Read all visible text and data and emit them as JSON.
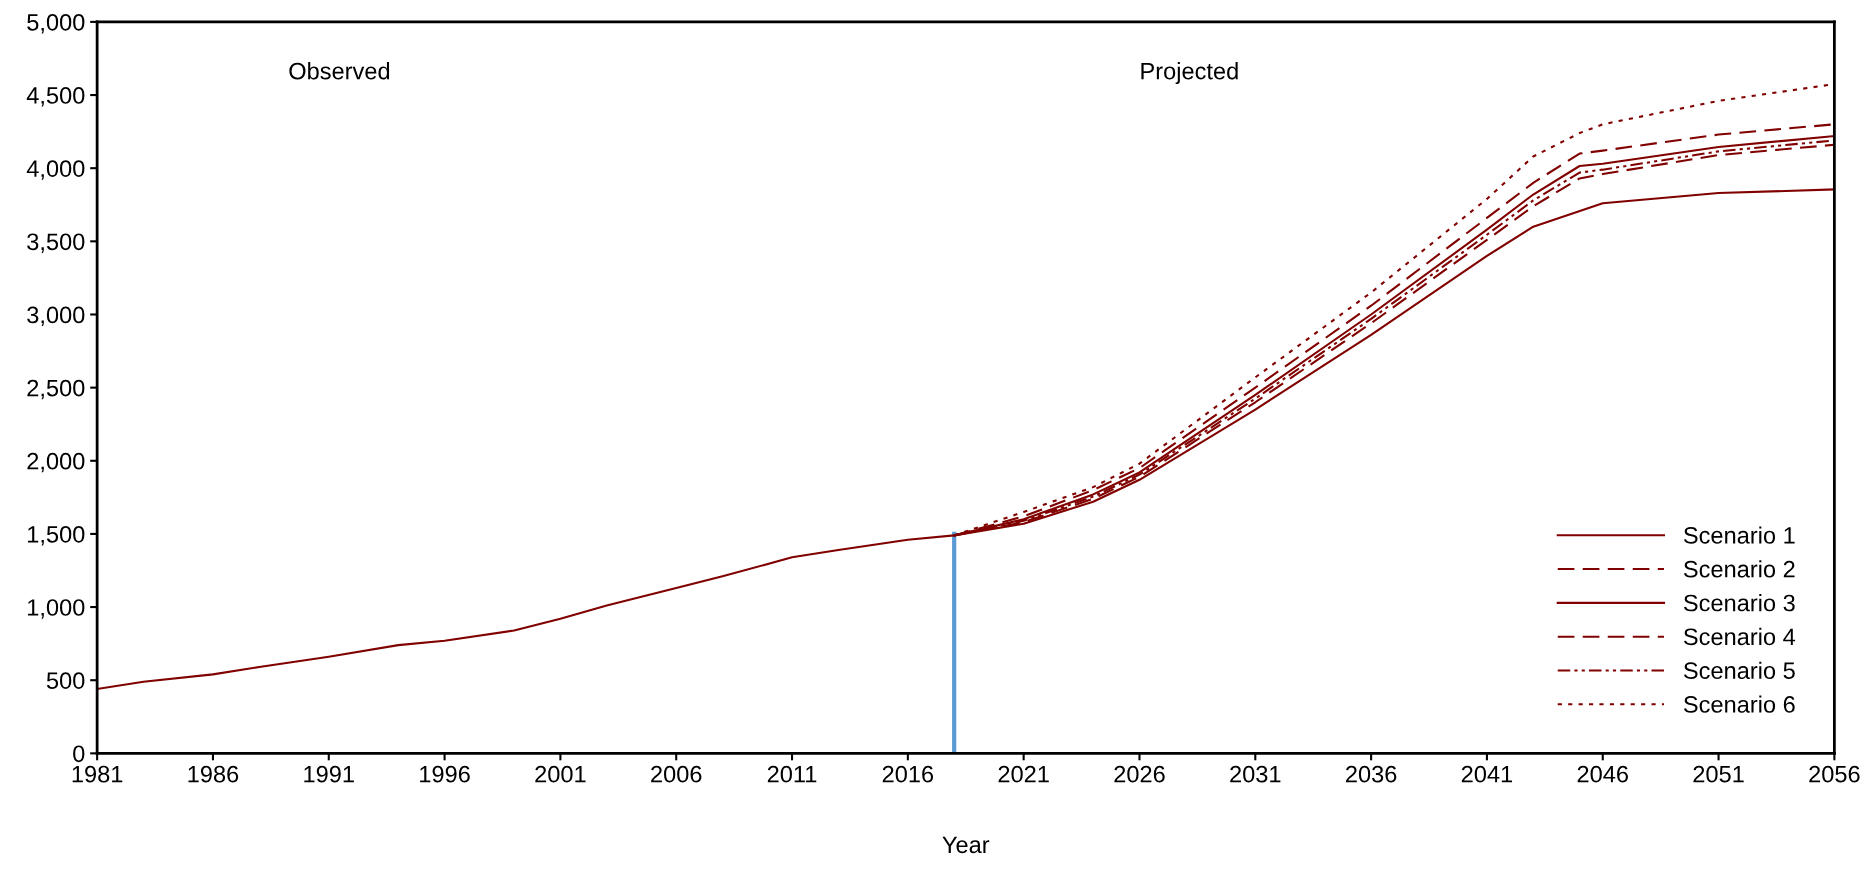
{
  "chart_data": {
    "type": "line",
    "xlabel": "Year",
    "annotations": [
      "Observed",
      "Projected"
    ],
    "xlim": [
      1981,
      2056
    ],
    "xticks": [
      1981,
      1986,
      1991,
      1996,
      2001,
      2006,
      2011,
      2016,
      2021,
      2026,
      2031,
      2036,
      2041,
      2046,
      2051,
      2056
    ],
    "ylim": [
      0,
      5000
    ],
    "yticks": [
      0,
      500,
      {
        "value": 1000,
        "label": "1,000"
      },
      {
        "value": 1500,
        "label": "1,500"
      },
      {
        "value": 2000,
        "label": "2,000"
      },
      {
        "value": 2500,
        "label": "2,500"
      },
      {
        "value": 3000,
        "label": "3,000"
      },
      {
        "value": 3500,
        "label": "3,500"
      },
      {
        "value": 4000,
        "label": "4,000"
      },
      {
        "value": 4500,
        "label": "4,500"
      },
      {
        "value": 5000,
        "label": "5,000"
      }
    ],
    "grid": false,
    "legend": "bottom right",
    "ref_lines": [
      {
        "axis": "x",
        "value": 2018,
        "label": null,
        "color": "#5b9bd5"
      }
    ],
    "series": [
      {
        "name": "Scenario 1",
        "color": "#800000",
        "line_style": "solid",
        "x": [
          1981,
          1983,
          1986,
          1988,
          1991,
          1994,
          1996,
          1999,
          2001,
          2003,
          2006,
          2008,
          2011,
          2013,
          2016,
          2018,
          2021,
          2024,
          2026,
          2031,
          2036,
          2041,
          2043,
          2046,
          2051,
          2056
        ],
        "values": [
          440,
          490,
          540,
          590,
          660,
          740,
          770,
          840,
          920,
          1010,
          1130,
          1210,
          1340,
          1390,
          1460,
          1490,
          1570,
          1720,
          1870,
          2350,
          2860,
          3400,
          3600,
          3760,
          3830,
          3855
        ]
      },
      {
        "name": "Scenario 2",
        "color": "#800000",
        "line_style": "dashed",
        "x": [
          2018,
          2021,
          2024,
          2026,
          2031,
          2036,
          2041,
          2043,
          2045,
          2046,
          2051,
          2056
        ],
        "values": [
          1490,
          1580,
          1740,
          1890,
          2400,
          2940,
          3510,
          3740,
          3930,
          3960,
          4090,
          4160
        ]
      },
      {
        "name": "Scenario 3",
        "color": "#800000",
        "line_style": "solid",
        "x": [
          2018,
          2021,
          2024,
          2026,
          2031,
          2036,
          2041,
          2043,
          2045,
          2046,
          2051,
          2056
        ],
        "values": [
          1490,
          1600,
          1770,
          1920,
          2450,
          3000,
          3580,
          3820,
          4015,
          4030,
          4145,
          4220
        ]
      },
      {
        "name": "Scenario 4",
        "color": "#800000",
        "line_style": "dashed",
        "x": [
          2018,
          2021,
          2024,
          2026,
          2031,
          2036,
          2041,
          2043,
          2045,
          2046,
          2051,
          2056
        ],
        "values": [
          1490,
          1620,
          1800,
          1950,
          2500,
          3060,
          3660,
          3900,
          4100,
          4120,
          4230,
          4300
        ]
      },
      {
        "name": "Scenario 5",
        "color": "#800000",
        "line_style": "dashdot",
        "x": [
          2018,
          2021,
          2024,
          2026,
          2031,
          2036,
          2041,
          2043,
          2045,
          2046,
          2051,
          2056
        ],
        "values": [
          1490,
          1590,
          1755,
          1905,
          2425,
          2970,
          3545,
          3780,
          3970,
          3990,
          4115,
          4190
        ]
      },
      {
        "name": "Scenario 6",
        "color": "#800000",
        "line_style": "dotted",
        "x": [
          2018,
          2021,
          2024,
          2026,
          2031,
          2036,
          2041,
          2043,
          2045,
          2046,
          2051,
          2056
        ],
        "values": [
          1490,
          1650,
          1820,
          1980,
          2570,
          3150,
          3790,
          4080,
          4240,
          4300,
          4460,
          4575
        ]
      }
    ]
  }
}
